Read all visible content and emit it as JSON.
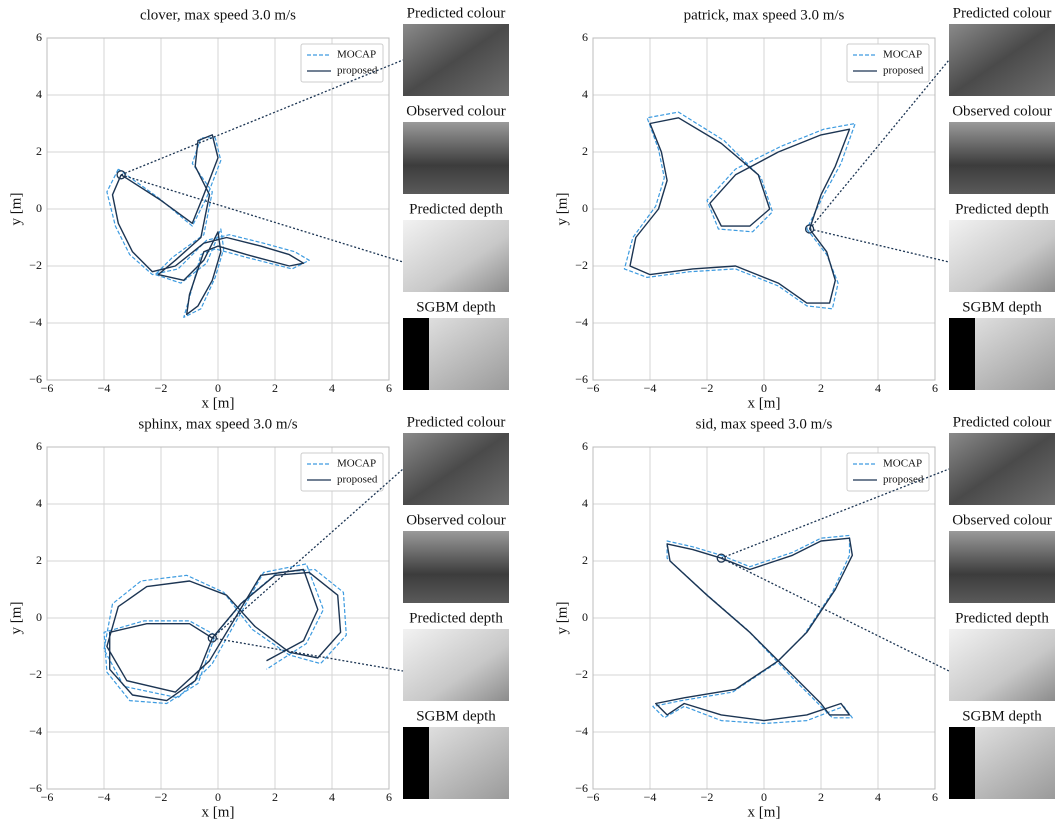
{
  "chart_data": [
    {
      "type": "line",
      "title": "clover, max speed 3.0 m/s",
      "xlabel": "x [m]",
      "ylabel": "y [m]",
      "xlim": [
        -6,
        6
      ],
      "ylim": [
        -6,
        6
      ],
      "xticks": [
        {
          "value": -6,
          "label": "−6"
        },
        {
          "value": -4,
          "label": "−4"
        },
        {
          "value": -2,
          "label": "−2"
        },
        0,
        2,
        4,
        6
      ],
      "yticks": [
        {
          "value": -6,
          "label": "−6"
        },
        {
          "value": -4,
          "label": "−4"
        },
        {
          "value": -2,
          "label": "−2"
        },
        0,
        2,
        4,
        6
      ],
      "grid": true,
      "legend": "upper right",
      "series": [
        {
          "name": "MOCAP",
          "color": "#3d9be0",
          "style": "dashed",
          "x": [
            -3.5,
            -3.9,
            -3.6,
            -3.1,
            -2.3,
            -1.4,
            -0.4,
            0.4,
            1.6,
            2.7,
            3.2,
            2.6,
            1.0,
            -0.1,
            -0.6,
            -1.0,
            -1.2,
            -0.6,
            -0.1,
            0.2,
            0.1,
            -0.4,
            -1.3,
            -2.2,
            -1.6,
            -0.5,
            -0.2,
            -0.9,
            -0.6,
            -0.1,
            0.1,
            -0.4,
            -0.9,
            -2.1,
            -3.5
          ],
          "values": [
            1.4,
            0.6,
            -0.6,
            -1.6,
            -2.3,
            -2.1,
            -1.1,
            -0.9,
            -1.2,
            -1.5,
            -1.8,
            -2.1,
            -1.7,
            -1.4,
            -1.6,
            -3.1,
            -3.8,
            -3.5,
            -2.4,
            -1.4,
            -0.7,
            -1.9,
            -2.6,
            -2.3,
            -1.7,
            -0.9,
            0.6,
            1.6,
            2.5,
            2.5,
            1.7,
            0.4,
            -0.6,
            0.4,
            1.4
          ]
        },
        {
          "name": "proposed",
          "color": "#1c3553",
          "style": "solid",
          "x": [
            -3.4,
            -3.7,
            -3.5,
            -3.0,
            -2.3,
            -1.5,
            -0.5,
            0.3,
            1.5,
            2.5,
            3.0,
            2.5,
            1.0,
            0.0,
            -0.5,
            -1.0,
            -1.1,
            -0.7,
            -0.2,
            0.1,
            0.0,
            -0.5,
            -1.2,
            -2.1,
            -1.5,
            -0.6,
            -0.3,
            -0.8,
            -0.7,
            -0.2,
            0.0,
            -0.5,
            -0.9,
            -2.0,
            -3.4
          ],
          "values": [
            1.2,
            0.5,
            -0.5,
            -1.5,
            -2.2,
            -2.0,
            -1.2,
            -1.0,
            -1.3,
            -1.6,
            -1.9,
            -2.0,
            -1.6,
            -1.3,
            -1.5,
            -3.0,
            -3.7,
            -3.4,
            -2.5,
            -1.5,
            -0.8,
            -1.8,
            -2.5,
            -2.3,
            -1.8,
            -1.0,
            0.5,
            1.5,
            2.4,
            2.6,
            1.8,
            0.5,
            -0.5,
            0.3,
            1.2
          ]
        }
      ],
      "marker": {
        "x": -3.4,
        "y": 1.2
      },
      "panels": [
        "Predicted colour",
        "Observed colour",
        "Predicted depth",
        "SGBM depth"
      ]
    },
    {
      "type": "line",
      "title": "patrick, max speed 3.0 m/s",
      "xlabel": "x [m]",
      "ylabel": "y [m]",
      "xlim": [
        -6,
        6
      ],
      "ylim": [
        -6,
        6
      ],
      "xticks": [
        {
          "value": -6,
          "label": "−6"
        },
        {
          "value": -4,
          "label": "−4"
        },
        {
          "value": -2,
          "label": "−2"
        },
        0,
        2,
        4,
        6
      ],
      "yticks": [
        {
          "value": -6,
          "label": "−6"
        },
        {
          "value": -4,
          "label": "−4"
        },
        {
          "value": -2,
          "label": "−2"
        },
        0,
        2,
        4,
        6
      ],
      "grid": true,
      "legend": "upper right",
      "series": [
        {
          "name": "MOCAP",
          "color": "#3d9be0",
          "style": "dashed",
          "x": [
            1.5,
            2.2,
            2.6,
            2.4,
            1.5,
            0.5,
            -1.0,
            -2.6,
            -4.1,
            -4.9,
            -4.6,
            -3.8,
            -3.5,
            -3.7,
            -4.1,
            -3.0,
            -1.4,
            -0.1,
            0.3,
            -0.4,
            -1.6,
            -2.0,
            -1.0,
            0.6,
            2.1,
            3.2,
            2.7,
            2.1,
            1.5
          ],
          "values": [
            -0.7,
            -1.6,
            -2.6,
            -3.5,
            -3.4,
            -2.7,
            -2.1,
            -2.2,
            -2.4,
            -2.1,
            -1.0,
            0.1,
            1.1,
            2.1,
            3.2,
            3.4,
            2.4,
            1.1,
            -0.1,
            -0.8,
            -0.7,
            0.3,
            1.4,
            2.2,
            2.8,
            3.0,
            1.6,
            0.5,
            -0.7
          ]
        },
        {
          "name": "proposed",
          "color": "#1c3553",
          "style": "solid",
          "x": [
            1.6,
            2.2,
            2.5,
            2.3,
            1.5,
            0.5,
            -1.0,
            -2.5,
            -4.0,
            -4.7,
            -4.5,
            -3.7,
            -3.4,
            -3.6,
            -4.0,
            -3.0,
            -1.5,
            -0.2,
            0.2,
            -0.5,
            -1.5,
            -1.9,
            -1.0,
            0.5,
            2.0,
            3.0,
            2.5,
            2.0,
            1.6
          ],
          "values": [
            -0.7,
            -1.5,
            -2.5,
            -3.3,
            -3.3,
            -2.6,
            -2.0,
            -2.1,
            -2.3,
            -2.0,
            -1.0,
            0.0,
            1.0,
            2.0,
            3.0,
            3.2,
            2.3,
            1.2,
            0.0,
            -0.6,
            -0.6,
            0.2,
            1.2,
            2.0,
            2.6,
            2.8,
            1.5,
            0.5,
            -0.7
          ]
        }
      ],
      "marker": {
        "x": 1.6,
        "y": -0.7
      },
      "panels": [
        "Predicted colour",
        "Observed colour",
        "Predicted depth",
        "SGBM depth"
      ]
    },
    {
      "type": "line",
      "title": "sphinx, max speed 3.0 m/s",
      "xlabel": "x [m]",
      "ylabel": "y [m]",
      "xlim": [
        -6,
        6
      ],
      "ylim": [
        -6,
        6
      ],
      "xticks": [
        {
          "value": -6,
          "label": "−6"
        },
        {
          "value": -4,
          "label": "−4"
        },
        {
          "value": -2,
          "label": "−2"
        },
        0,
        2,
        4,
        6
      ],
      "yticks": [
        {
          "value": -6,
          "label": "−6"
        },
        {
          "value": -4,
          "label": "−4"
        },
        {
          "value": -2,
          "label": "−2"
        },
        0,
        2,
        4,
        6
      ],
      "grid": true,
      "legend": "upper right",
      "series": [
        {
          "name": "MOCAP",
          "color": "#3d9be0",
          "style": "dashed",
          "x": [
            -0.1,
            -1.0,
            -2.6,
            -4.0,
            -3.9,
            -3.1,
            -1.8,
            -0.7,
            -0.1,
            0.9,
            2.1,
            3.4,
            4.4,
            4.5,
            3.6,
            2.5,
            1.2,
            0.2,
            -1.1,
            -2.7,
            -3.7,
            -4.0,
            -3.3,
            -1.4,
            -0.2,
            1.6,
            3.1,
            3.7,
            3.1,
            1.7
          ],
          "values": [
            -0.6,
            -0.1,
            -0.1,
            -0.5,
            -1.9,
            -2.9,
            -3.0,
            -2.3,
            -0.6,
            0.6,
            1.6,
            1.7,
            0.9,
            -0.6,
            -1.6,
            -1.3,
            -0.4,
            0.9,
            1.5,
            1.3,
            0.5,
            -1.1,
            -2.4,
            -2.8,
            -1.6,
            1.6,
            1.9,
            0.3,
            -0.9,
            -1.8
          ]
        },
        {
          "name": "proposed",
          "color": "#1c3553",
          "style": "solid",
          "x": [
            -0.2,
            -1.0,
            -2.5,
            -3.8,
            -3.8,
            -3.0,
            -1.8,
            -0.8,
            -0.2,
            0.8,
            2.0,
            3.2,
            4.2,
            4.3,
            3.5,
            2.5,
            1.3,
            0.3,
            -1.0,
            -2.5,
            -3.5,
            -3.9,
            -3.2,
            -1.5,
            -0.3,
            1.5,
            3.0,
            3.5,
            3.0,
            1.7
          ],
          "values": [
            -0.7,
            -0.2,
            -0.2,
            -0.5,
            -1.8,
            -2.7,
            -2.9,
            -2.2,
            -0.7,
            0.5,
            1.5,
            1.6,
            0.8,
            -0.5,
            -1.4,
            -1.2,
            -0.3,
            0.8,
            1.3,
            1.1,
            0.4,
            -1.0,
            -2.2,
            -2.6,
            -1.5,
            1.5,
            1.7,
            0.3,
            -0.8,
            -1.5
          ]
        }
      ],
      "marker": {
        "x": -0.2,
        "y": -0.7
      },
      "panels": [
        "Predicted colour",
        "Observed colour",
        "Predicted depth",
        "SGBM depth"
      ]
    },
    {
      "type": "line",
      "title": "sid, max speed 3.0 m/s",
      "xlabel": "x [m]",
      "ylabel": "y [m]",
      "xlim": [
        -6,
        6
      ],
      "ylim": [
        -6,
        6
      ],
      "xticks": [
        {
          "value": -6,
          "label": "−6"
        },
        {
          "value": -4,
          "label": "−4"
        },
        {
          "value": -2,
          "label": "−2"
        },
        0,
        2,
        4,
        6
      ],
      "yticks": [
        {
          "value": -6,
          "label": "−6"
        },
        {
          "value": -4,
          "label": "−4"
        },
        {
          "value": -2,
          "label": "−2"
        },
        0,
        2,
        4,
        6
      ],
      "grid": true,
      "legend": "upper right",
      "series": [
        {
          "name": "MOCAP",
          "color": "#3d9be0",
          "style": "dashed",
          "x": [
            -1.5,
            -0.5,
            1.0,
            2.0,
            3.0,
            3.0,
            2.4,
            1.4,
            0.4,
            -1.1,
            -2.9,
            -3.9,
            -3.5,
            -2.8,
            -1.5,
            0.0,
            1.5,
            2.8,
            3.1,
            2.4,
            2.0,
            1.0,
            -0.6,
            -2.1,
            -3.4,
            -3.4,
            -2.5,
            -1.5
          ],
          "values": [
            2.2,
            1.8,
            2.3,
            2.8,
            2.9,
            2.2,
            0.9,
            -0.6,
            -1.6,
            -2.6,
            -2.9,
            -3.1,
            -3.5,
            -3.1,
            -3.6,
            -3.7,
            -3.6,
            -3.1,
            -3.5,
            -3.5,
            -3.1,
            -2.1,
            -0.4,
            0.9,
            2.1,
            2.7,
            2.5,
            2.2
          ]
        },
        {
          "name": "proposed",
          "color": "#1c3553",
          "style": "solid",
          "x": [
            -1.5,
            -0.5,
            1.0,
            2.0,
            3.0,
            3.1,
            2.5,
            1.5,
            0.5,
            -1.0,
            -2.8,
            -3.8,
            -3.4,
            -2.8,
            -1.5,
            0.0,
            1.5,
            2.7,
            3.0,
            2.3,
            2.0,
            1.0,
            -0.5,
            -2.0,
            -3.3,
            -3.4,
            -2.5,
            -1.5
          ],
          "values": [
            2.1,
            1.7,
            2.2,
            2.7,
            2.8,
            2.2,
            1.0,
            -0.5,
            -1.5,
            -2.5,
            -2.8,
            -3.0,
            -3.4,
            -3.0,
            -3.4,
            -3.6,
            -3.4,
            -3.0,
            -3.4,
            -3.4,
            -3.0,
            -2.0,
            -0.5,
            0.8,
            2.0,
            2.6,
            2.4,
            2.1
          ]
        }
      ],
      "marker": {
        "x": -1.5,
        "y": 2.1
      },
      "panels": [
        "Predicted colour",
        "Observed colour",
        "Predicted depth",
        "SGBM depth"
      ]
    }
  ]
}
